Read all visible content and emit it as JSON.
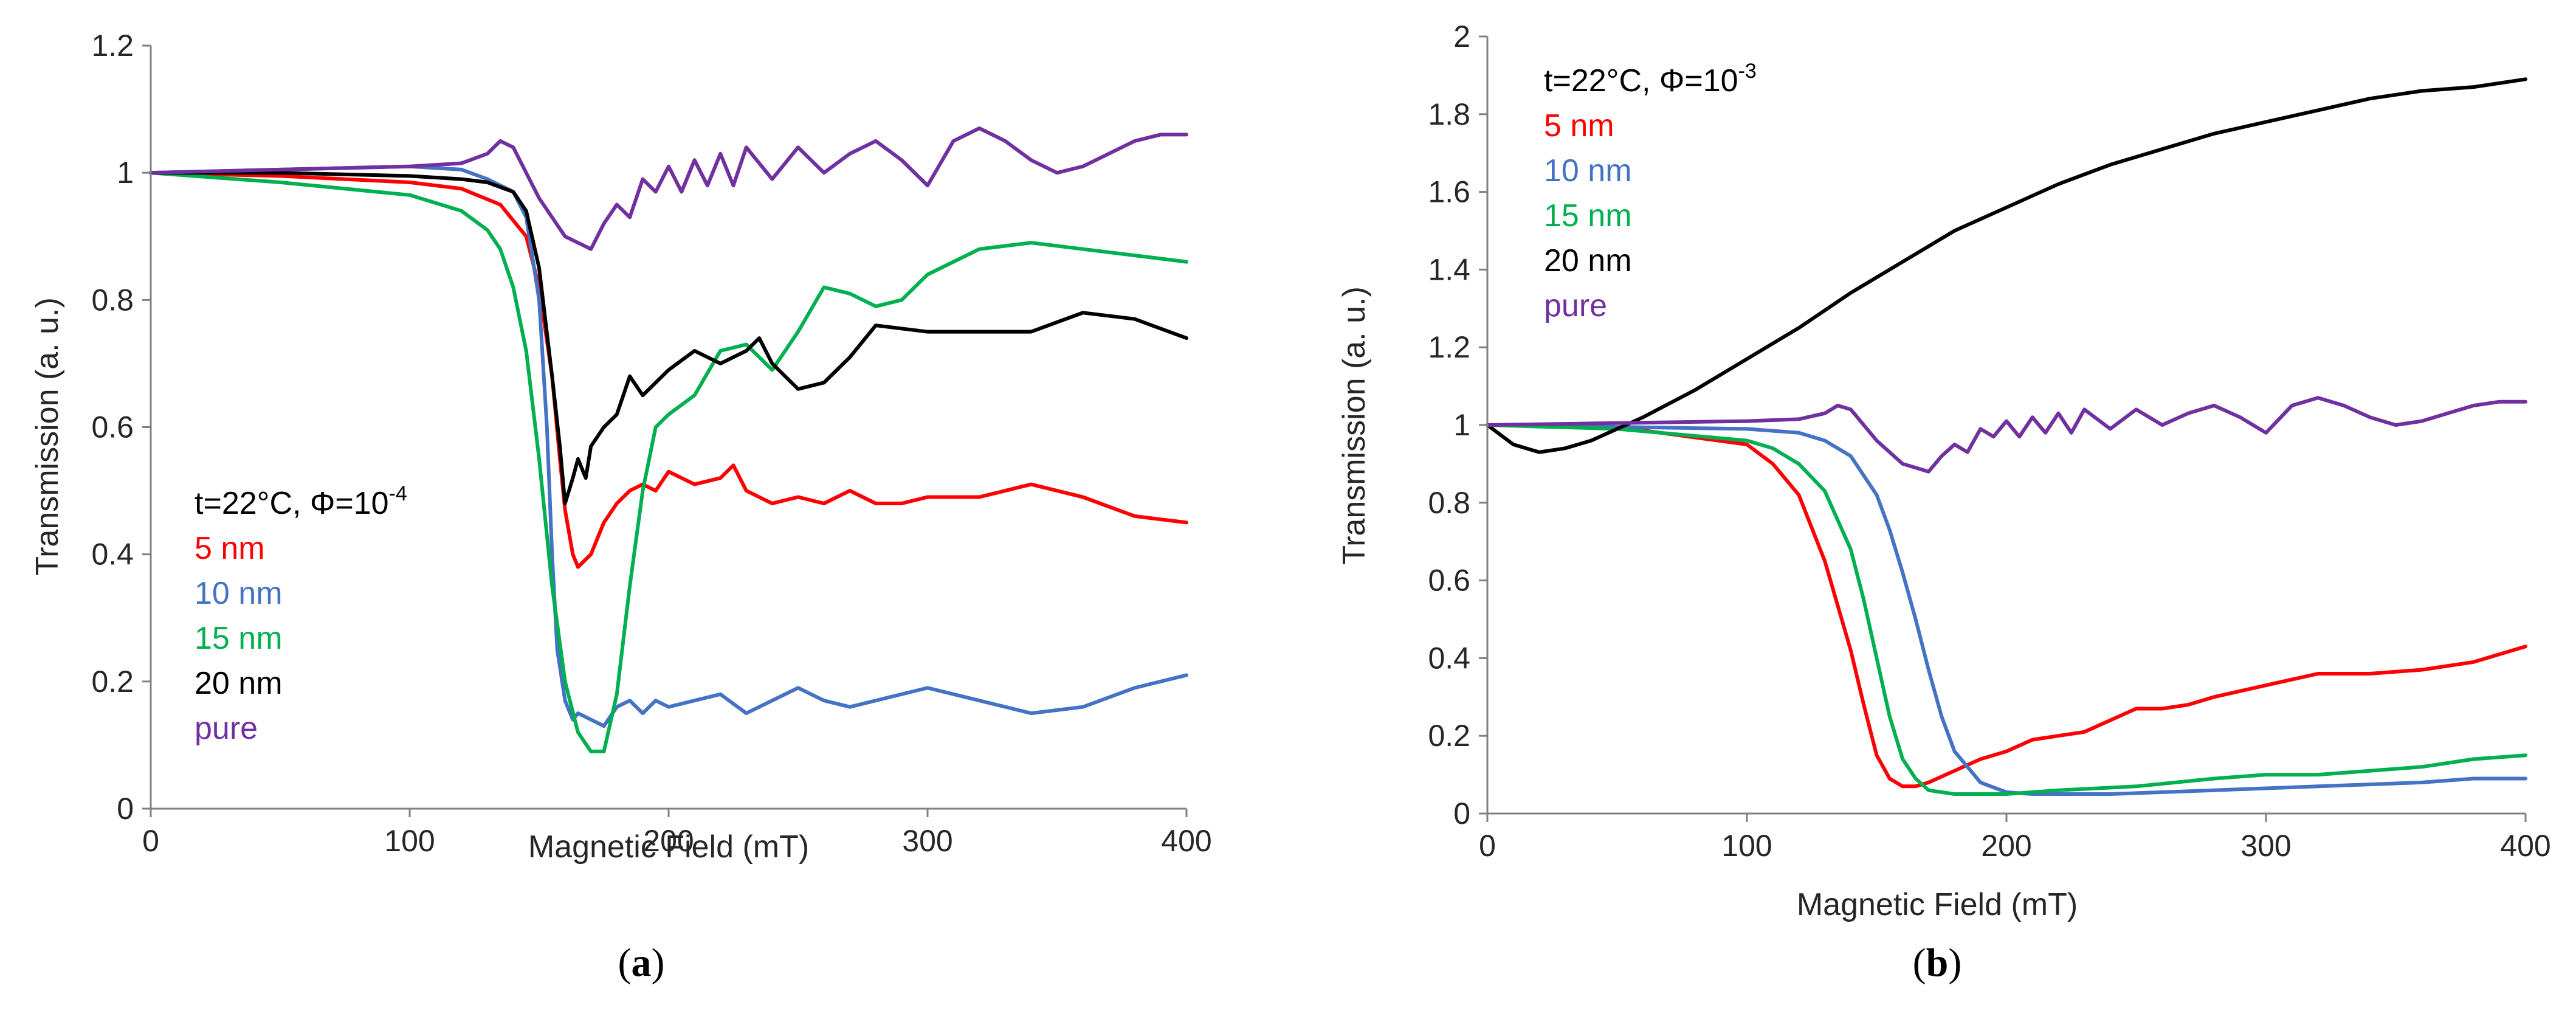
{
  "chart_data": [
    {
      "panel": "a",
      "type": "line",
      "xlabel": "Magnetic Field (mT)",
      "ylabel": "Transmission (a. u.)",
      "xlim": [
        0,
        400
      ],
      "ylim": [
        0,
        1.2
      ],
      "xticks": [
        0,
        100,
        200,
        300,
        400
      ],
      "xtick_labels": [
        "0",
        "100",
        "200",
        "300",
        "400"
      ],
      "yticks": [
        0,
        0.2,
        0.4,
        0.6,
        0.8,
        1,
        1.2
      ],
      "ytick_labels": [
        "0",
        "0.2",
        "0.4",
        "0.6",
        "0.8",
        "1",
        "1.2"
      ],
      "grid": false,
      "legend_position": "bottom-left",
      "legend_title": "t=22°C, Φ=10",
      "legend_title_exponent": "-4",
      "panel_label": "a",
      "series": [
        {
          "name": "5 nm",
          "color": "#ff0000",
          "x": [
            0,
            50,
            100,
            120,
            135,
            145,
            150,
            155,
            158,
            160,
            163,
            165,
            170,
            175,
            180,
            185,
            190,
            195,
            200,
            210,
            220,
            225,
            230,
            240,
            250,
            260,
            270,
            280,
            290,
            300,
            320,
            340,
            360,
            380,
            400
          ],
          "y": [
            1,
            0.995,
            0.985,
            0.975,
            0.95,
            0.9,
            0.82,
            0.68,
            0.55,
            0.47,
            0.4,
            0.38,
            0.4,
            0.45,
            0.48,
            0.5,
            0.51,
            0.5,
            0.53,
            0.51,
            0.52,
            0.54,
            0.5,
            0.48,
            0.49,
            0.48,
            0.5,
            0.48,
            0.48,
            0.49,
            0.49,
            0.51,
            0.49,
            0.46,
            0.45
          ]
        },
        {
          "name": "10 nm",
          "color": "#4472c4",
          "x": [
            0,
            50,
            100,
            120,
            130,
            140,
            145,
            150,
            153,
            155,
            157,
            160,
            163,
            165,
            170,
            175,
            180,
            185,
            190,
            195,
            200,
            210,
            220,
            230,
            240,
            250,
            260,
            270,
            280,
            300,
            320,
            340,
            360,
            380,
            400
          ],
          "y": [
            1,
            1.005,
            1.01,
            1.005,
            0.99,
            0.97,
            0.93,
            0.8,
            0.6,
            0.4,
            0.25,
            0.17,
            0.14,
            0.15,
            0.14,
            0.13,
            0.16,
            0.17,
            0.15,
            0.17,
            0.16,
            0.17,
            0.18,
            0.15,
            0.17,
            0.19,
            0.17,
            0.16,
            0.17,
            0.19,
            0.17,
            0.15,
            0.16,
            0.19,
            0.21
          ]
        },
        {
          "name": "15 nm",
          "color": "#00b050",
          "x": [
            0,
            50,
            100,
            120,
            130,
            135,
            140,
            145,
            150,
            155,
            160,
            165,
            170,
            175,
            180,
            185,
            190,
            195,
            200,
            210,
            220,
            230,
            240,
            250,
            260,
            270,
            280,
            290,
            300,
            320,
            340,
            360,
            380,
            400
          ],
          "y": [
            1,
            0.985,
            0.965,
            0.94,
            0.91,
            0.88,
            0.82,
            0.72,
            0.55,
            0.35,
            0.2,
            0.12,
            0.09,
            0.09,
            0.18,
            0.35,
            0.5,
            0.6,
            0.62,
            0.65,
            0.72,
            0.73,
            0.69,
            0.75,
            0.82,
            0.81,
            0.79,
            0.8,
            0.84,
            0.88,
            0.89,
            0.88,
            0.87,
            0.86
          ]
        },
        {
          "name": "20 nm",
          "color": "#000000",
          "x": [
            0,
            50,
            100,
            120,
            130,
            140,
            145,
            150,
            155,
            158,
            160,
            163,
            165,
            168,
            170,
            175,
            180,
            185,
            190,
            200,
            210,
            220,
            230,
            235,
            240,
            250,
            260,
            270,
            280,
            300,
            320,
            340,
            360,
            380,
            400
          ],
          "y": [
            1,
            1,
            0.995,
            0.99,
            0.985,
            0.97,
            0.94,
            0.85,
            0.68,
            0.57,
            0.48,
            0.52,
            0.55,
            0.52,
            0.57,
            0.6,
            0.62,
            0.68,
            0.65,
            0.69,
            0.72,
            0.7,
            0.72,
            0.74,
            0.7,
            0.66,
            0.67,
            0.71,
            0.76,
            0.75,
            0.75,
            0.75,
            0.78,
            0.77,
            0.74
          ]
        },
        {
          "name": "pure",
          "color": "#7030a0",
          "x": [
            0,
            50,
            100,
            120,
            130,
            135,
            140,
            145,
            150,
            155,
            160,
            165,
            170,
            175,
            180,
            185,
            190,
            195,
            200,
            205,
            210,
            215,
            220,
            225,
            230,
            240,
            250,
            260,
            270,
            280,
            290,
            300,
            310,
            320,
            330,
            340,
            350,
            360,
            370,
            380,
            390,
            400
          ],
          "y": [
            1,
            1.005,
            1.01,
            1.015,
            1.03,
            1.05,
            1.04,
            1.0,
            0.96,
            0.93,
            0.9,
            0.89,
            0.88,
            0.92,
            0.95,
            0.93,
            0.99,
            0.97,
            1.01,
            0.97,
            1.02,
            0.98,
            1.03,
            0.98,
            1.04,
            0.99,
            1.04,
            1.0,
            1.03,
            1.05,
            1.02,
            0.98,
            1.05,
            1.07,
            1.05,
            1.02,
            1.0,
            1.01,
            1.03,
            1.05,
            1.06,
            1.06
          ]
        }
      ]
    },
    {
      "panel": "b",
      "type": "line",
      "xlabel": "Magnetic Field (mT)",
      "ylabel": "Transmission (a. u.)",
      "xlim": [
        0,
        400
      ],
      "ylim": [
        0,
        2
      ],
      "xticks": [
        0,
        100,
        200,
        300,
        400
      ],
      "xtick_labels": [
        "0",
        "100",
        "200",
        "300",
        "400"
      ],
      "yticks": [
        0,
        0.2,
        0.4,
        0.6,
        0.8,
        1,
        1.2,
        1.4,
        1.6,
        1.8,
        2
      ],
      "ytick_labels": [
        "0",
        "0.2",
        "0.4",
        "0.6",
        "0.8",
        "1",
        "1.2",
        "1.4",
        "1.6",
        "1.8",
        "2"
      ],
      "grid": false,
      "legend_position": "top-left",
      "legend_title": "t=22°C, Φ=10",
      "legend_title_exponent": "-3",
      "panel_label": "b",
      "series": [
        {
          "name": "5 nm",
          "color": "#ff0000",
          "x": [
            0,
            50,
            100,
            110,
            120,
            130,
            140,
            145,
            150,
            155,
            160,
            165,
            170,
            180,
            190,
            200,
            210,
            220,
            230,
            240,
            250,
            260,
            270,
            280,
            300,
            320,
            340,
            360,
            380,
            400
          ],
          "y": [
            1,
            0.995,
            0.95,
            0.9,
            0.82,
            0.65,
            0.42,
            0.28,
            0.15,
            0.09,
            0.07,
            0.07,
            0.08,
            0.11,
            0.14,
            0.16,
            0.19,
            0.2,
            0.21,
            0.24,
            0.27,
            0.27,
            0.28,
            0.3,
            0.33,
            0.36,
            0.36,
            0.37,
            0.39,
            0.43
          ]
        },
        {
          "name": "10 nm",
          "color": "#4472c4",
          "x": [
            0,
            50,
            100,
            120,
            130,
            140,
            150,
            155,
            160,
            165,
            170,
            175,
            180,
            190,
            200,
            210,
            220,
            240,
            260,
            280,
            300,
            320,
            340,
            360,
            380,
            400
          ],
          "y": [
            1,
            0.995,
            0.99,
            0.98,
            0.96,
            0.92,
            0.82,
            0.73,
            0.62,
            0.5,
            0.37,
            0.25,
            0.16,
            0.08,
            0.055,
            0.05,
            0.05,
            0.05,
            0.055,
            0.06,
            0.065,
            0.07,
            0.075,
            0.08,
            0.09,
            0.09
          ]
        },
        {
          "name": "15 nm",
          "color": "#00b050",
          "x": [
            0,
            50,
            100,
            110,
            120,
            130,
            140,
            145,
            150,
            155,
            160,
            165,
            170,
            180,
            190,
            200,
            220,
            250,
            280,
            300,
            320,
            340,
            360,
            380,
            400
          ],
          "y": [
            1,
            0.99,
            0.96,
            0.94,
            0.9,
            0.83,
            0.68,
            0.55,
            0.4,
            0.25,
            0.14,
            0.09,
            0.06,
            0.05,
            0.05,
            0.05,
            0.06,
            0.07,
            0.09,
            0.1,
            0.1,
            0.11,
            0.12,
            0.14,
            0.15
          ]
        },
        {
          "name": "20 nm",
          "color": "#000000",
          "x": [
            0,
            10,
            20,
            30,
            40,
            50,
            60,
            80,
            100,
            120,
            140,
            160,
            180,
            200,
            220,
            240,
            260,
            280,
            300,
            320,
            340,
            360,
            380,
            400
          ],
          "y": [
            1,
            0.95,
            0.93,
            0.94,
            0.96,
            0.99,
            1.02,
            1.09,
            1.17,
            1.25,
            1.34,
            1.42,
            1.5,
            1.56,
            1.62,
            1.67,
            1.71,
            1.75,
            1.78,
            1.81,
            1.84,
            1.86,
            1.87,
            1.89
          ]
        },
        {
          "name": "pure",
          "color": "#7030a0",
          "x": [
            0,
            50,
            100,
            120,
            130,
            135,
            140,
            145,
            150,
            155,
            160,
            165,
            170,
            175,
            180,
            185,
            190,
            195,
            200,
            205,
            210,
            215,
            220,
            225,
            230,
            240,
            250,
            260,
            270,
            280,
            290,
            300,
            310,
            320,
            330,
            340,
            350,
            360,
            370,
            380,
            390,
            400
          ],
          "y": [
            1,
            1.005,
            1.01,
            1.015,
            1.03,
            1.05,
            1.04,
            1.0,
            0.96,
            0.93,
            0.9,
            0.89,
            0.88,
            0.92,
            0.95,
            0.93,
            0.99,
            0.97,
            1.01,
            0.97,
            1.02,
            0.98,
            1.03,
            0.98,
            1.04,
            0.99,
            1.04,
            1.0,
            1.03,
            1.05,
            1.02,
            0.98,
            1.05,
            1.07,
            1.05,
            1.02,
            1.0,
            1.01,
            1.03,
            1.05,
            1.06,
            1.06
          ]
        }
      ]
    }
  ]
}
